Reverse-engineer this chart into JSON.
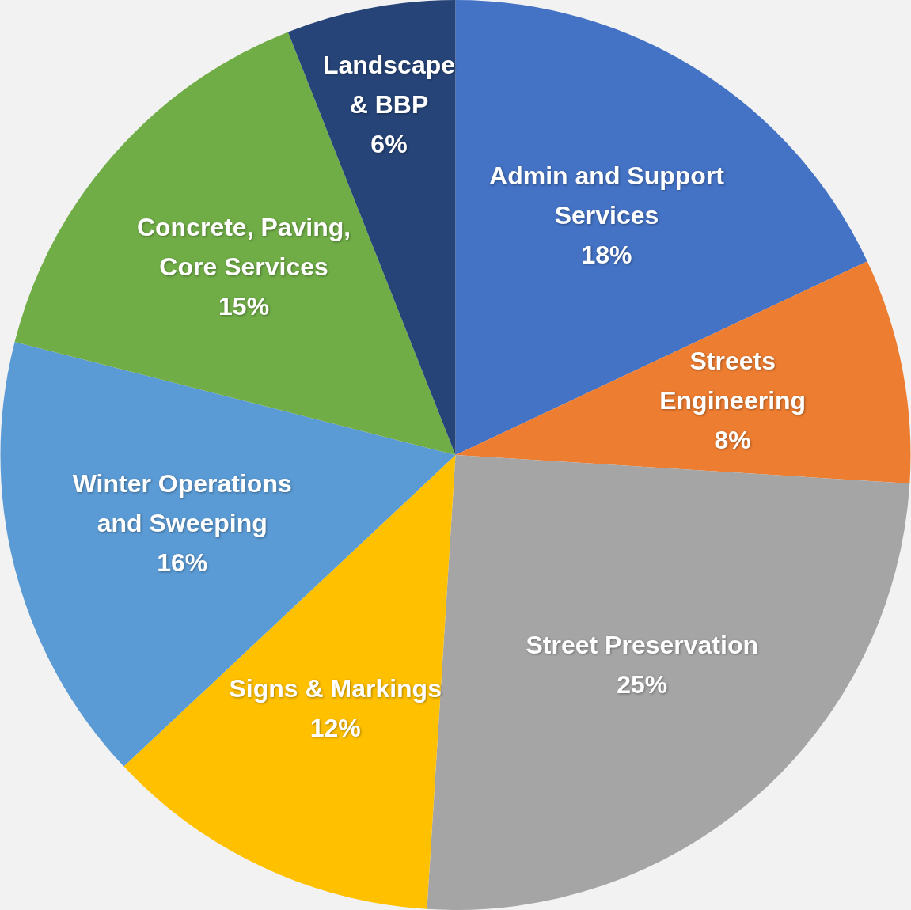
{
  "chart_data": {
    "type": "pie",
    "categories": [
      "Admin and Support Services",
      "Streets Engineering",
      "Street Preservation",
      "Signs & Markings",
      "Winter Operations and Sweeping",
      "Concrete, Paving, Core Services",
      "Landscape & BBP"
    ],
    "values": [
      18,
      8,
      25,
      12,
      16,
      15,
      6
    ],
    "value_labels": [
      "18%",
      "8%",
      "25%",
      "12%",
      "16%",
      "15%",
      "6%"
    ],
    "colors": [
      "#4472c4",
      "#ed7d31",
      "#a5a5a5",
      "#ffc000",
      "#5b9bd5",
      "#70ad47",
      "#264478"
    ],
    "legend": false
  }
}
